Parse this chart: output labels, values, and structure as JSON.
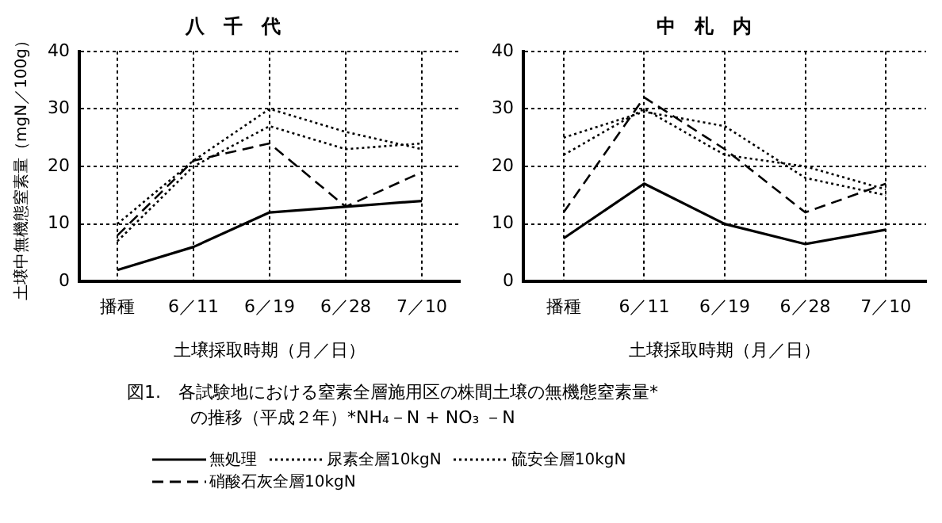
{
  "chart_data": [
    {
      "type": "line",
      "title": "八　千　代",
      "xlabel": "土壌採取時期（月／日）",
      "ylabel": "土壌中無機態窒素量（mgN／100g）",
      "categories": [
        "播種",
        "6／11",
        "6／19",
        "6／28",
        "7／10"
      ],
      "ylim": [
        0,
        40
      ],
      "yticks": [
        0,
        10,
        20,
        30,
        40
      ],
      "grid": true,
      "legend": "bottom",
      "marker": "none",
      "series": [
        {
          "name": "無処理",
          "color": "#000000",
          "line_style": "solid",
          "values": [
            2,
            6,
            12,
            13,
            14
          ]
        },
        {
          "name": "尿素全層10kgN",
          "color": "#000000",
          "line_style": "dotted",
          "values": [
            7,
            20,
            27,
            23,
            24
          ]
        },
        {
          "name": "硫安全層10kgN",
          "color": "#000000",
          "line_style": "dotted",
          "values": [
            10,
            21,
            30,
            26,
            23
          ]
        },
        {
          "name": "硝酸石灰全層10kgN",
          "color": "#000000",
          "line_style": "dashed",
          "values": [
            8,
            21,
            24,
            13,
            19
          ]
        }
      ],
      "annotations": [
        "図1.　各試験地における窒素全層施用区の株間土壌の無機態窒素量*",
        "の推移（平成２年）*NH₄－N + NO₃ －N"
      ]
    },
    {
      "type": "line",
      "title": "中　札　内",
      "xlabel": "土壌採取時期（月／日）",
      "categories": [
        "播種",
        "6／11",
        "6／19",
        "6／28",
        "7／10"
      ],
      "ylim": [
        0,
        40
      ],
      "yticks": [
        0,
        10,
        20,
        30,
        40
      ],
      "grid": true,
      "marker": "none",
      "series": [
        {
          "color": "#000000",
          "line_style": "solid",
          "values": [
            7.5,
            17,
            10,
            6.5,
            9
          ]
        },
        {
          "color": "#000000",
          "line_style": "dotted",
          "values": [
            22,
            30,
            22,
            20,
            16
          ]
        },
        {
          "color": "#000000",
          "line_style": "dotted",
          "values": [
            25,
            29.5,
            27,
            18,
            15
          ]
        },
        {
          "color": "#000000",
          "line_style": "dashed",
          "values": [
            12,
            32,
            23,
            12,
            17
          ]
        }
      ]
    }
  ]
}
